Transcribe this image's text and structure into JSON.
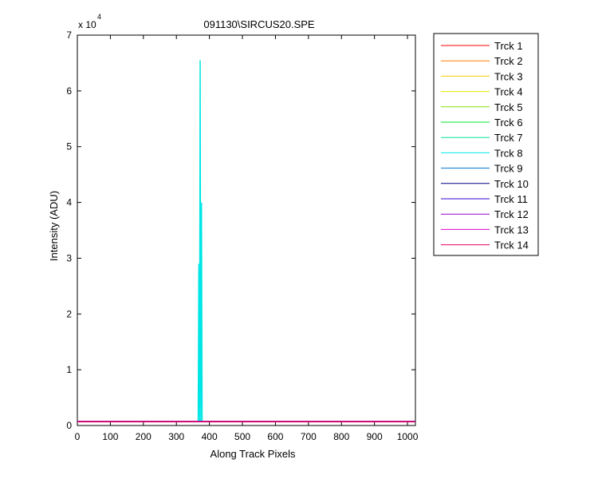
{
  "chart_data": {
    "type": "line",
    "title": "091130\\SIRCUS20.SPE",
    "xlabel": "Along Track Pixels",
    "ylabel": "Intensity (ADU)",
    "y_exponent": {
      "base": "x 10",
      "power": "4"
    },
    "x": [
      0,
      366,
      368,
      370,
      372,
      374,
      376,
      378,
      1023
    ],
    "xlim": [
      0,
      1024
    ],
    "xticks": [
      0,
      100,
      200,
      300,
      400,
      500,
      600,
      700,
      800,
      900,
      1000
    ],
    "ylim": [
      0,
      70000
    ],
    "yticks": [
      {
        "value": 0,
        "label": "0"
      },
      {
        "value": 10000,
        "label": "1"
      },
      {
        "value": 20000,
        "label": "2"
      },
      {
        "value": 30000,
        "label": "3"
      },
      {
        "value": 40000,
        "label": "4"
      },
      {
        "value": 50000,
        "label": "5"
      },
      {
        "value": 60000,
        "label": "6"
      },
      {
        "value": 70000,
        "label": "7"
      }
    ],
    "legend": "outside-right",
    "series": [
      {
        "name": "Trck 1",
        "color": "#ff0000",
        "values": [
          700,
          700,
          700,
          700,
          700,
          700,
          700,
          700,
          700
        ]
      },
      {
        "name": "Trck 2",
        "color": "#ff7f00",
        "values": [
          700,
          700,
          700,
          700,
          700,
          700,
          700,
          700,
          700
        ]
      },
      {
        "name": "Trck 3",
        "color": "#ffcc00",
        "values": [
          700,
          700,
          700,
          700,
          700,
          700,
          700,
          700,
          700
        ]
      },
      {
        "name": "Trck 4",
        "color": "#e6e600",
        "values": [
          700,
          700,
          700,
          700,
          700,
          700,
          700,
          700,
          700
        ]
      },
      {
        "name": "Trck 5",
        "color": "#80e600",
        "values": [
          700,
          700,
          700,
          700,
          700,
          700,
          700,
          700,
          700
        ]
      },
      {
        "name": "Trck 6",
        "color": "#00e633",
        "values": [
          700,
          700,
          700,
          700,
          700,
          700,
          700,
          700,
          700
        ]
      },
      {
        "name": "Trck 7",
        "color": "#00e699",
        "values": [
          700,
          700,
          700,
          700,
          700,
          700,
          700,
          700,
          700
        ]
      },
      {
        "name": "Trck 8",
        "color": "#00e6e6",
        "values": [
          700,
          700,
          29000,
          700,
          65500,
          700,
          40000,
          700,
          700
        ]
      },
      {
        "name": "Trck 9",
        "color": "#0073cc",
        "values": [
          700,
          700,
          700,
          700,
          700,
          700,
          700,
          700,
          700
        ]
      },
      {
        "name": "Trck 10",
        "color": "#000080",
        "values": [
          700,
          700,
          700,
          700,
          700,
          700,
          700,
          700,
          700
        ]
      },
      {
        "name": "Trck 11",
        "color": "#3300cc",
        "values": [
          700,
          700,
          700,
          700,
          700,
          700,
          700,
          700,
          700
        ]
      },
      {
        "name": "Trck 12",
        "color": "#9900cc",
        "values": [
          700,
          700,
          700,
          700,
          700,
          700,
          700,
          700,
          700
        ]
      },
      {
        "name": "Trck 13",
        "color": "#e600cc",
        "values": [
          700,
          700,
          700,
          700,
          700,
          700,
          700,
          700,
          700
        ]
      },
      {
        "name": "Trck 14",
        "color": "#e60066",
        "values": [
          700,
          700,
          700,
          700,
          700,
          700,
          700,
          700,
          700
        ]
      }
    ]
  }
}
